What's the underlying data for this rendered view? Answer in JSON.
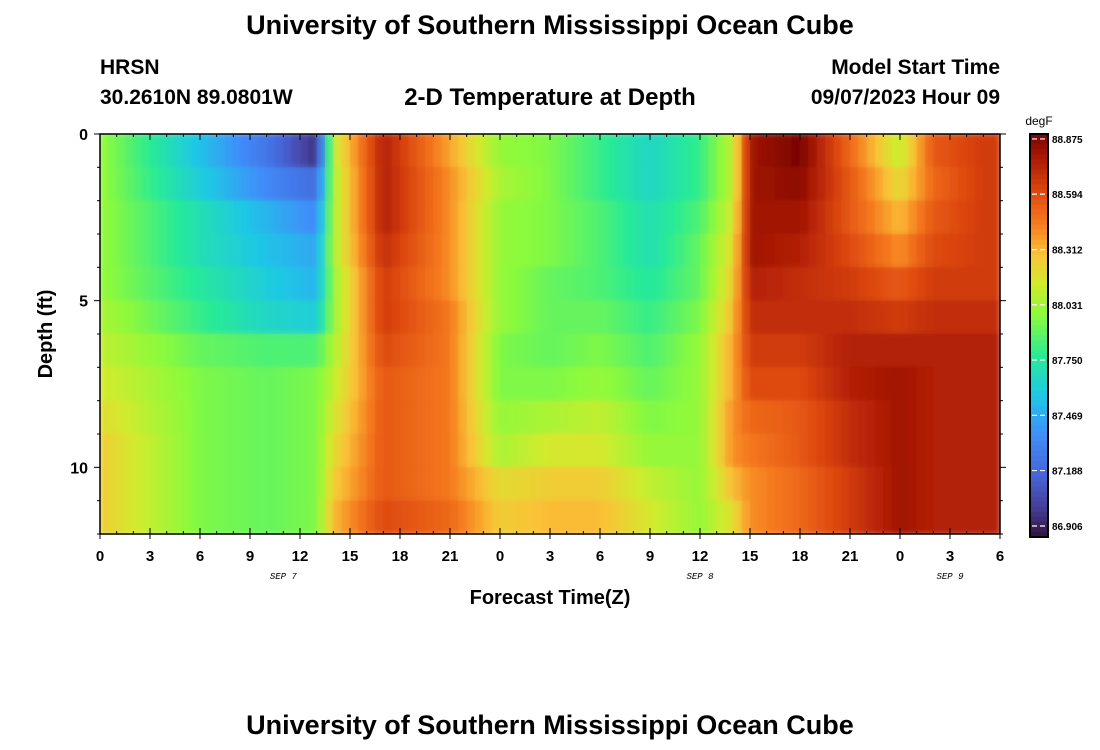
{
  "header": {
    "title": "University of Southern Mississippi Ocean Cube",
    "station": "HRSN",
    "coords": "30.2610N  89.0801W",
    "subtitle": "2-D Temperature at Depth",
    "model_label": "Model Start Time",
    "model_time": "09/07/2023 Hour 09"
  },
  "footer": {
    "title": "University of Southern Mississippi Ocean Cube"
  },
  "chart_data": {
    "type": "heatmap",
    "title": "2-D Temperature at Depth",
    "xlabel": "Forecast Time(Z)",
    "ylabel": "Depth (ft)",
    "x_range_hours": [
      0,
      54
    ],
    "x_tick_labels": [
      "0",
      "3",
      "6",
      "9",
      "12",
      "15",
      "18",
      "21",
      "0",
      "3",
      "6",
      "9",
      "12",
      "15",
      "18",
      "21",
      "0",
      "3",
      "6"
    ],
    "date_labels": [
      {
        "label": "SEP 7",
        "hour": 11
      },
      {
        "label": "SEP 8",
        "hour": 36
      },
      {
        "label": "SEP 9",
        "hour": 51
      }
    ],
    "y_range": [
      0,
      12
    ],
    "y_tick_labels": [
      "0",
      "5",
      "10"
    ],
    "colorbar": {
      "unit": "degF",
      "min": 86.85,
      "max": 88.9,
      "ticks": [
        "88.875",
        "88.594",
        "88.312",
        "88.031",
        "87.750",
        "87.469",
        "87.188",
        "86.906"
      ]
    },
    "depth_levels_ft": [
      0.5,
      1.5,
      2.5,
      3.5,
      4.5,
      5.5,
      6.5,
      7.5,
      8.5,
      9.5,
      10.5,
      11.5
    ],
    "time_samples_hours": [
      0,
      6,
      10,
      13,
      14,
      17,
      21,
      24,
      27,
      30,
      33,
      36,
      38,
      39,
      42,
      45,
      48,
      50,
      53
    ],
    "temperature_degF": [
      [
        88.0,
        87.55,
        87.25,
        86.95,
        88.1,
        88.75,
        88.35,
        88.0,
        87.95,
        87.8,
        87.65,
        87.8,
        88.1,
        88.8,
        88.9,
        88.5,
        88.1,
        88.55,
        88.65
      ],
      [
        88.0,
        87.6,
        87.35,
        87.2,
        88.05,
        88.75,
        88.4,
        88.05,
        87.95,
        87.8,
        87.65,
        87.8,
        88.1,
        88.8,
        88.85,
        88.55,
        88.2,
        88.5,
        88.65
      ],
      [
        88.0,
        87.7,
        87.5,
        87.35,
        88.05,
        88.75,
        88.4,
        88.0,
        87.95,
        87.85,
        87.7,
        87.85,
        88.15,
        88.8,
        88.8,
        88.55,
        88.3,
        88.55,
        88.65
      ],
      [
        88.0,
        87.7,
        87.55,
        87.45,
        88.05,
        88.7,
        88.4,
        88.0,
        87.95,
        87.85,
        87.7,
        87.9,
        88.2,
        88.8,
        88.75,
        88.6,
        88.4,
        88.6,
        88.65
      ],
      [
        88.0,
        87.75,
        87.6,
        87.5,
        88.0,
        88.65,
        88.4,
        88.0,
        87.9,
        87.85,
        87.75,
        87.9,
        88.25,
        88.75,
        88.7,
        88.65,
        88.55,
        88.65,
        88.65
      ],
      [
        88.05,
        87.8,
        87.65,
        87.6,
        88.0,
        88.65,
        88.45,
        88.0,
        87.9,
        87.9,
        87.8,
        87.95,
        88.3,
        88.7,
        88.7,
        88.7,
        88.65,
        88.7,
        88.7
      ],
      [
        88.1,
        87.9,
        87.85,
        87.85,
        88.05,
        88.6,
        88.45,
        87.95,
        87.9,
        87.95,
        87.85,
        88.0,
        88.35,
        88.65,
        88.65,
        88.75,
        88.75,
        88.75,
        88.75
      ],
      [
        88.15,
        87.95,
        87.9,
        87.95,
        88.1,
        88.55,
        88.45,
        87.95,
        87.95,
        88.0,
        87.9,
        88.0,
        88.35,
        88.6,
        88.6,
        88.75,
        88.8,
        88.75,
        88.75
      ],
      [
        88.2,
        87.95,
        87.9,
        87.95,
        88.15,
        88.55,
        88.45,
        88.0,
        88.05,
        88.1,
        87.95,
        88.0,
        88.4,
        88.5,
        88.55,
        88.7,
        88.8,
        88.75,
        88.75
      ],
      [
        88.25,
        87.95,
        87.9,
        87.95,
        88.2,
        88.55,
        88.45,
        88.05,
        88.15,
        88.15,
        88.0,
        88.0,
        88.4,
        88.45,
        88.55,
        88.7,
        88.8,
        88.75,
        88.75
      ],
      [
        88.25,
        87.95,
        87.9,
        87.95,
        88.25,
        88.55,
        88.45,
        88.2,
        88.25,
        88.25,
        88.1,
        88.0,
        88.3,
        88.4,
        88.5,
        88.65,
        88.8,
        88.75,
        88.75
      ],
      [
        88.25,
        87.95,
        87.9,
        87.95,
        88.3,
        88.6,
        88.5,
        88.25,
        88.3,
        88.3,
        88.15,
        88.0,
        88.2,
        88.4,
        88.5,
        88.65,
        88.8,
        88.75,
        88.75
      ]
    ]
  }
}
